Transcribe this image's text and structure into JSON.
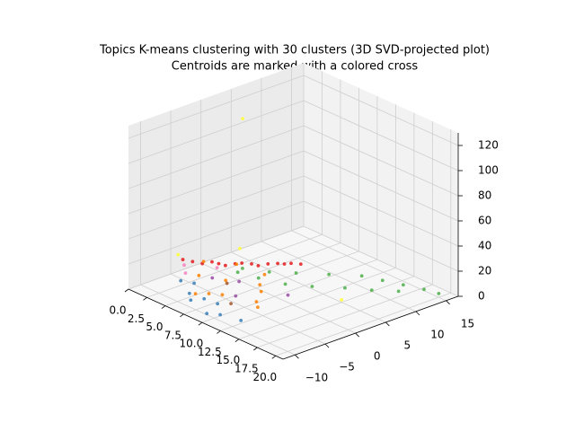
{
  "chart_data": {
    "type": "scatter3d",
    "title": "Topics K-means clustering with 30 clusters (3D SVD-projected plot)",
    "subtitle": "Centroids are marked with a colored cross",
    "xlim": [
      0,
      21
    ],
    "ylim": [
      -12,
      17
    ],
    "zlim": [
      0,
      130
    ],
    "xticks": [
      {
        "value": 0,
        "label": "0.0"
      },
      2.5,
      {
        "value": 5,
        "label": "5.0"
      },
      7.5,
      {
        "value": 10,
        "label": "10.0"
      },
      12.5,
      {
        "value": 15,
        "label": "15.0"
      },
      17.5,
      {
        "value": 20,
        "label": "20.0"
      }
    ],
    "yticks": [
      {
        "value": -10,
        "label": "−10"
      },
      {
        "value": -5,
        "label": "−5"
      },
      0,
      5,
      10,
      15
    ],
    "zticks": [
      0,
      20,
      40,
      60,
      80,
      100,
      120
    ],
    "grid": true,
    "series": [
      {
        "color": "#e41a1c",
        "x": [
          1,
          2,
          3,
          4,
          5,
          6,
          7,
          1.5,
          2.5,
          3.5,
          4.5,
          5.5,
          6.5,
          0.5,
          0
        ],
        "values": [
          -1,
          0.5,
          2,
          3.5,
          5,
          6.5,
          8,
          0,
          1,
          2.5,
          4,
          6,
          7,
          -2,
          -3
        ],
        "z": [
          4,
          4,
          4,
          4,
          4,
          4,
          4,
          5,
          3,
          5,
          3,
          4,
          5,
          6,
          8
        ]
      },
      {
        "color": "#ff7f00",
        "x": [
          3,
          5,
          7,
          8,
          10,
          4,
          6,
          9,
          2,
          11,
          5,
          7
        ],
        "values": [
          -4,
          -2,
          -5,
          0,
          -3,
          1,
          -6,
          -1,
          -2,
          -4,
          -7,
          2
        ],
        "z": [
          5,
          3,
          2,
          4,
          1,
          8,
          2,
          3,
          10,
          1,
          1,
          6
        ]
      },
      {
        "color": "#4daf4a",
        "x": [
          4,
          6,
          8,
          10,
          12,
          14,
          16,
          18,
          20,
          7,
          9,
          11,
          13,
          15,
          5,
          17
        ],
        "values": [
          2,
          4,
          6,
          9,
          12,
          13,
          14,
          15,
          15,
          1,
          3,
          5,
          8,
          10,
          0,
          12
        ],
        "z": [
          3,
          2,
          3,
          2,
          1,
          1,
          1,
          1,
          3,
          5,
          2,
          2,
          1,
          1,
          6,
          2
        ]
      },
      {
        "color": "#377eb8",
        "x": [
          5,
          6,
          8,
          9,
          4,
          7,
          10,
          12,
          3
        ],
        "values": [
          -8,
          -9,
          -7,
          -10,
          -6,
          -8,
          -9,
          -8,
          -7
        ],
        "z": [
          3,
          2,
          1,
          1,
          5,
          4,
          1,
          0,
          6
        ]
      },
      {
        "color": "#984ea3",
        "x": [
          4,
          6,
          8,
          11
        ],
        "values": [
          -3,
          -1,
          -4,
          1
        ],
        "z": [
          4,
          3,
          2,
          2
        ]
      },
      {
        "color": "#f781bf",
        "x": [
          1,
          2,
          3
        ],
        "values": [
          -4,
          -5,
          -1
        ],
        "z": [
          8,
          6,
          6
        ]
      },
      {
        "color": "#ffff33",
        "x": [
          0,
          1,
          15,
          2
        ],
        "values": [
          6.9,
          -5,
          5,
          4
        ],
        "z": [
          103,
          18,
          2,
          10
        ]
      },
      {
        "color": "#a65628",
        "x": [
          6,
          9
        ],
        "values": [
          -3,
          -6
        ],
        "z": [
          5,
          2
        ]
      }
    ]
  }
}
